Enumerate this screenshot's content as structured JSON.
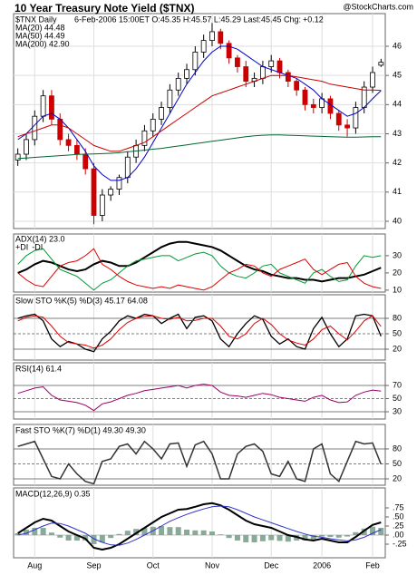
{
  "chart_data": [
    {
      "type": "candlestick",
      "title": "10 Year Treasury Note Yield ($TNX)",
      "watermark": "@StockCharts.com",
      "symbol": "$TNX Daily",
      "info": "6-Feb-2006 15:00ET O:45.35 H:45.57 L:45.29 Last:45.45 Chg:",
      "change": "+0.12",
      "change_color": "#008000",
      "up_color": "#000000",
      "down_color": "#cc0000",
      "open": [
        42.1,
        42.3,
        42.8,
        43.6,
        44.3,
        43.5,
        42.8,
        42.6,
        42.3,
        41.8,
        40.2,
        40.9,
        41.1,
        41.5,
        42.2,
        42.6,
        43.1,
        43.5,
        43.9,
        44.5,
        44.9,
        45.2,
        45.8,
        46.2,
        46.5,
        46.1,
        45.6,
        45.3,
        44.8,
        44.9,
        45.3,
        45.5,
        45.1,
        44.8,
        44.5,
        44.0,
        43.9,
        44.2,
        43.7,
        43.3,
        43.2,
        43.9,
        44.6,
        45.35
      ],
      "high": [
        42.5,
        43.0,
        43.8,
        44.5,
        44.5,
        43.7,
        43.0,
        42.8,
        42.5,
        42.0,
        41.1,
        41.2,
        41.6,
        42.4,
        42.8,
        43.3,
        43.7,
        44.1,
        44.7,
        45.1,
        45.4,
        46.0,
        46.4,
        46.8,
        46.6,
        46.2,
        45.7,
        45.5,
        45.1,
        45.5,
        45.7,
        45.6,
        45.2,
        44.9,
        44.6,
        44.2,
        44.4,
        44.3,
        43.8,
        43.5,
        44.1,
        44.8,
        45.3,
        45.57
      ],
      "low": [
        41.9,
        42.1,
        42.6,
        43.4,
        43.3,
        42.6,
        42.4,
        42.1,
        41.6,
        39.9,
        40.0,
        40.7,
        40.9,
        41.3,
        42.0,
        42.4,
        42.9,
        43.3,
        43.7,
        44.3,
        44.7,
        45.0,
        45.6,
        46.0,
        45.9,
        45.4,
        45.1,
        44.6,
        44.6,
        44.7,
        45.1,
        44.9,
        44.6,
        44.3,
        43.8,
        43.7,
        43.7,
        43.5,
        43.1,
        42.9,
        43.0,
        43.7,
        44.4,
        45.29
      ],
      "close": [
        42.3,
        42.8,
        43.6,
        44.3,
        43.5,
        42.8,
        42.6,
        42.3,
        41.8,
        40.2,
        40.9,
        41.1,
        41.5,
        42.2,
        42.6,
        43.1,
        43.5,
        43.9,
        44.5,
        44.9,
        45.2,
        45.8,
        46.2,
        46.5,
        46.1,
        45.6,
        45.3,
        44.8,
        44.9,
        45.3,
        45.5,
        45.1,
        44.8,
        44.5,
        44.0,
        43.9,
        44.2,
        43.7,
        43.3,
        43.2,
        43.9,
        44.6,
        45.1,
        45.45
      ],
      "series": [
        {
          "name": "MA(20) 44.48",
          "color": "#0000cc",
          "values": [
            42.8,
            43.0,
            43.3,
            43.6,
            43.7,
            43.5,
            43.2,
            42.8,
            42.4,
            41.9,
            41.6,
            41.4,
            41.4,
            41.5,
            41.8,
            42.2,
            42.7,
            43.2,
            43.7,
            44.2,
            44.7,
            45.1,
            45.5,
            45.8,
            46.0,
            46.0,
            45.9,
            45.7,
            45.5,
            45.3,
            45.2,
            45.1,
            45.0,
            44.9,
            44.7,
            44.5,
            44.2,
            44.0,
            43.8,
            43.6,
            43.7,
            43.9,
            44.2,
            44.48
          ]
        },
        {
          "name": "MA(50) 44.49",
          "color": "#cc0000",
          "values": [
            42.9,
            43.0,
            43.1,
            43.2,
            43.3,
            43.3,
            43.2,
            43.0,
            42.8,
            42.6,
            42.5,
            42.4,
            42.4,
            42.5,
            42.6,
            42.7,
            42.9,
            43.1,
            43.3,
            43.5,
            43.7,
            43.9,
            44.1,
            44.3,
            44.4,
            44.5,
            44.6,
            44.7,
            44.8,
            44.9,
            45.0,
            45.0,
            45.0,
            44.95,
            44.9,
            44.85,
            44.8,
            44.7,
            44.65,
            44.6,
            44.55,
            44.5,
            44.5,
            44.49
          ]
        },
        {
          "name": "MA(200) 42.90",
          "color": "#006633",
          "values": [
            42.15,
            42.17,
            42.19,
            42.21,
            42.23,
            42.25,
            42.27,
            42.29,
            42.3,
            42.31,
            42.32,
            42.33,
            42.35,
            42.38,
            42.41,
            42.44,
            42.47,
            42.5,
            42.54,
            42.58,
            42.62,
            42.66,
            42.7,
            42.74,
            42.78,
            42.82,
            42.86,
            42.9,
            42.93,
            42.95,
            42.96,
            42.96,
            42.95,
            42.94,
            42.93,
            42.92,
            42.91,
            42.9,
            42.89,
            42.88,
            42.88,
            42.89,
            42.9,
            42.9
          ]
        }
      ],
      "ylim": [
        39.75,
        47.12
      ],
      "yticks": [
        40,
        41,
        42,
        43,
        44,
        45,
        46
      ],
      "grid": true
    },
    {
      "type": "line",
      "series": [
        {
          "name": "ADX(14) 23.0",
          "color": "#000000",
          "width": 2,
          "values": [
            20,
            22,
            25,
            27,
            26,
            24,
            22,
            21,
            22,
            25,
            27,
            26,
            24,
            24,
            26,
            29,
            32,
            35,
            37,
            38,
            38,
            37,
            36,
            35,
            33,
            30,
            27,
            24,
            22,
            21,
            19,
            18,
            17,
            17,
            16,
            16,
            15,
            16,
            17,
            17,
            18,
            19,
            21,
            23
          ]
        },
        {
          "name": "+DI",
          "color": "#009933",
          "width": 1,
          "values": [
            25,
            30,
            33,
            34,
            28,
            22,
            20,
            18,
            14,
            10,
            14,
            16,
            20,
            24,
            27,
            28,
            29,
            30,
            30,
            27,
            29,
            31,
            32,
            30,
            24,
            20,
            18,
            17,
            20,
            24,
            25,
            20,
            18,
            16,
            14,
            20,
            22,
            18,
            15,
            16,
            24,
            30,
            29,
            30
          ]
        },
        {
          "name": "-DI",
          "color": "#dd0000",
          "width": 1,
          "values": [
            20,
            16,
            13,
            12,
            18,
            24,
            26,
            27,
            30,
            34,
            25,
            22,
            18,
            15,
            13,
            12,
            11,
            12,
            11,
            13,
            12,
            11,
            10,
            12,
            16,
            20,
            22,
            25,
            24,
            20,
            18,
            22,
            24,
            26,
            28,
            22,
            19,
            22,
            25,
            26,
            18,
            14,
            12,
            11
          ]
        }
      ],
      "ylim": [
        8.9,
        42.6
      ],
      "yticks": [
        10,
        20,
        30
      ]
    },
    {
      "type": "line",
      "title": "Slow STO %K(5) %D(3) 45.17 64.08",
      "ref_lines": true,
      "series": [
        {
          "color": "#000000",
          "width": 1.3,
          "values": [
            80,
            85,
            88,
            75,
            40,
            25,
            35,
            30,
            20,
            15,
            40,
            55,
            75,
            85,
            80,
            88,
            85,
            70,
            80,
            88,
            60,
            82,
            85,
            75,
            40,
            25,
            50,
            70,
            85,
            78,
            45,
            30,
            40,
            25,
            20,
            60,
            82,
            50,
            25,
            40,
            85,
            88,
            85,
            45.17
          ]
        },
        {
          "color": "#dd0000",
          "width": 1,
          "values": [
            75,
            82,
            85,
            82,
            65,
            45,
            33,
            30,
            28,
            22,
            28,
            40,
            58,
            72,
            80,
            84,
            85,
            80,
            78,
            82,
            75,
            76,
            80,
            80,
            65,
            45,
            40,
            50,
            70,
            80,
            68,
            50,
            38,
            32,
            28,
            40,
            58,
            65,
            50,
            38,
            55,
            75,
            85,
            64.08
          ]
        }
      ],
      "ylim": [
        -1.2,
        125.9
      ],
      "yticks": [
        20,
        50,
        80
      ]
    },
    {
      "type": "line",
      "title": "RSI(14) 61.4",
      "ref_lines": true,
      "series": [
        {
          "color": "#990066",
          "width": 1,
          "values": [
            58,
            62,
            66,
            68,
            55,
            48,
            46,
            44,
            40,
            32,
            42,
            45,
            50,
            55,
            58,
            62,
            64,
            66,
            68,
            70,
            66,
            70,
            72,
            70,
            60,
            55,
            54,
            52,
            55,
            58,
            56,
            52,
            50,
            48,
            46,
            52,
            55,
            48,
            44,
            45,
            55,
            60,
            63,
            61.4
          ]
        }
      ],
      "ylim": [
        19,
        104.5
      ],
      "yticks": [
        30,
        50,
        70
      ]
    },
    {
      "type": "line",
      "title": "Fast STO %K(7) %D(1) 49.30 49.30",
      "ref_lines": true,
      "series": [
        {
          "color": "#333333",
          "width": 1.5,
          "values": [
            85,
            90,
            95,
            60,
            25,
            20,
            50,
            30,
            15,
            10,
            55,
            60,
            85,
            90,
            70,
            95,
            80,
            60,
            90,
            92,
            45,
            88,
            95,
            70,
            20,
            20,
            70,
            85,
            90,
            75,
            30,
            25,
            55,
            20,
            15,
            80,
            90,
            30,
            15,
            55,
            95,
            90,
            92,
            49.3
          ]
        }
      ],
      "ylim": [
        7.3,
        129
      ],
      "yticks": [
        20,
        50,
        80
      ]
    },
    {
      "type": "line",
      "title": "MACD(12,26,9) 0.35",
      "categories": [
        null,
        null,
        "Aug",
        null,
        null,
        null,
        null,
        null,
        null,
        "Sep",
        null,
        null,
        null,
        null,
        null,
        null,
        "Oct",
        null,
        null,
        null,
        null,
        null,
        null,
        "Nov",
        null,
        null,
        null,
        null,
        null,
        null,
        "Dec",
        null,
        null,
        null,
        null,
        null,
        "2006",
        null,
        null,
        null,
        null,
        null,
        "Feb",
        null
      ],
      "series": [
        {
          "kind": "histogram",
          "color": "#88aa99",
          "values": [
            0.05,
            0.15,
            0.2,
            0.2,
            0.07,
            -0.07,
            -0.15,
            -0.15,
            -0.15,
            -0.25,
            -0.2,
            -0.08,
            0.03,
            0.12,
            0.17,
            0.2,
            0.23,
            0.25,
            0.22,
            0.22,
            0.15,
            0.13,
            0.13,
            0.1,
            0.02,
            -0.08,
            -0.15,
            -0.2,
            -0.2,
            -0.17,
            -0.14,
            -0.16,
            -0.18,
            -0.15,
            -0.15,
            -0.12,
            -0.04,
            -0.05,
            -0.07,
            -0.04,
            0.08,
            0.18,
            0.23,
            0.2
          ]
        },
        {
          "color": "#000000",
          "width": 2,
          "values": [
            0.05,
            0.2,
            0.35,
            0.45,
            0.4,
            0.25,
            0.1,
            0.0,
            -0.1,
            -0.35,
            -0.4,
            -0.35,
            -0.25,
            -0.1,
            0.05,
            0.2,
            0.35,
            0.5,
            0.6,
            0.7,
            0.72,
            0.78,
            0.85,
            0.88,
            0.82,
            0.7,
            0.55,
            0.4,
            0.3,
            0.25,
            0.2,
            0.1,
            0.0,
            -0.05,
            -0.12,
            -0.15,
            -0.1,
            -0.15,
            -0.2,
            -0.2,
            -0.05,
            0.12,
            0.28,
            0.35
          ]
        },
        {
          "color": "#3333cc",
          "width": 1,
          "values": [
            0.0,
            0.05,
            0.15,
            0.25,
            0.33,
            0.32,
            0.25,
            0.15,
            0.05,
            -0.1,
            -0.2,
            -0.27,
            -0.28,
            -0.22,
            -0.12,
            0.0,
            0.12,
            0.25,
            0.38,
            0.48,
            0.57,
            0.65,
            0.72,
            0.78,
            0.8,
            0.78,
            0.7,
            0.6,
            0.5,
            0.42,
            0.34,
            0.26,
            0.18,
            0.1,
            0.03,
            -0.03,
            -0.06,
            -0.1,
            -0.13,
            -0.16,
            -0.13,
            -0.06,
            0.05,
            0.15
          ]
        }
      ],
      "ylim": [
        -0.625,
        1.3
      ],
      "yticks": [
        {
          "value": 0.75,
          "label": ".75"
        },
        {
          "value": 0.5,
          "label": ".50"
        },
        {
          "value": 0.25,
          "label": ".25"
        },
        {
          "value": 0,
          "label": ".00"
        },
        {
          "value": -0.25,
          "label": "-.25"
        }
      ]
    }
  ]
}
